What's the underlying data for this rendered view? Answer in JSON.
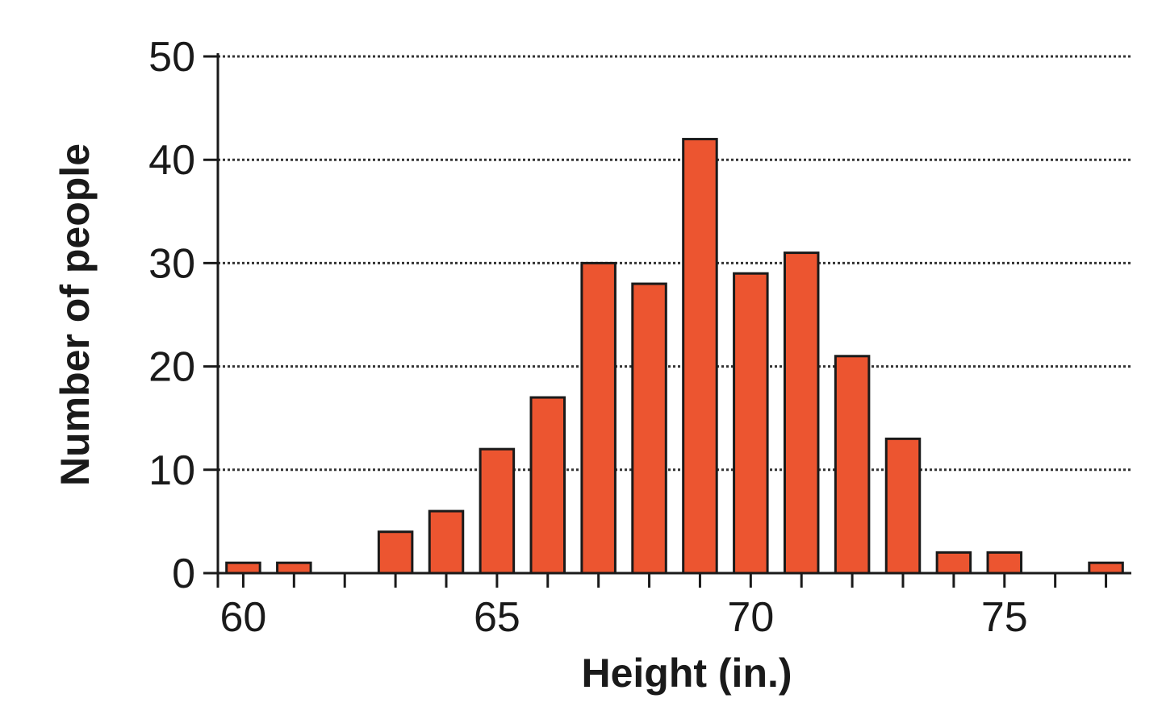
{
  "chart_data": {
    "type": "bar",
    "title": "",
    "xlabel": "Height (in.)",
    "ylabel": "Number of people",
    "x": [
      60,
      61,
      62,
      63,
      64,
      65,
      66,
      67,
      68,
      69,
      70,
      71,
      72,
      73,
      74,
      75,
      76,
      77
    ],
    "values": [
      1,
      1,
      0,
      4,
      6,
      12,
      17,
      30,
      28,
      42,
      29,
      31,
      21,
      13,
      2,
      2,
      0,
      1
    ],
    "xlim": [
      59.5,
      77.5
    ],
    "ylim": [
      0,
      50
    ],
    "x_ticks": [
      60,
      65,
      70,
      75
    ],
    "y_ticks": [
      0,
      10,
      20,
      30,
      40,
      50
    ],
    "grid": true,
    "bar_color": "#ec5530"
  }
}
